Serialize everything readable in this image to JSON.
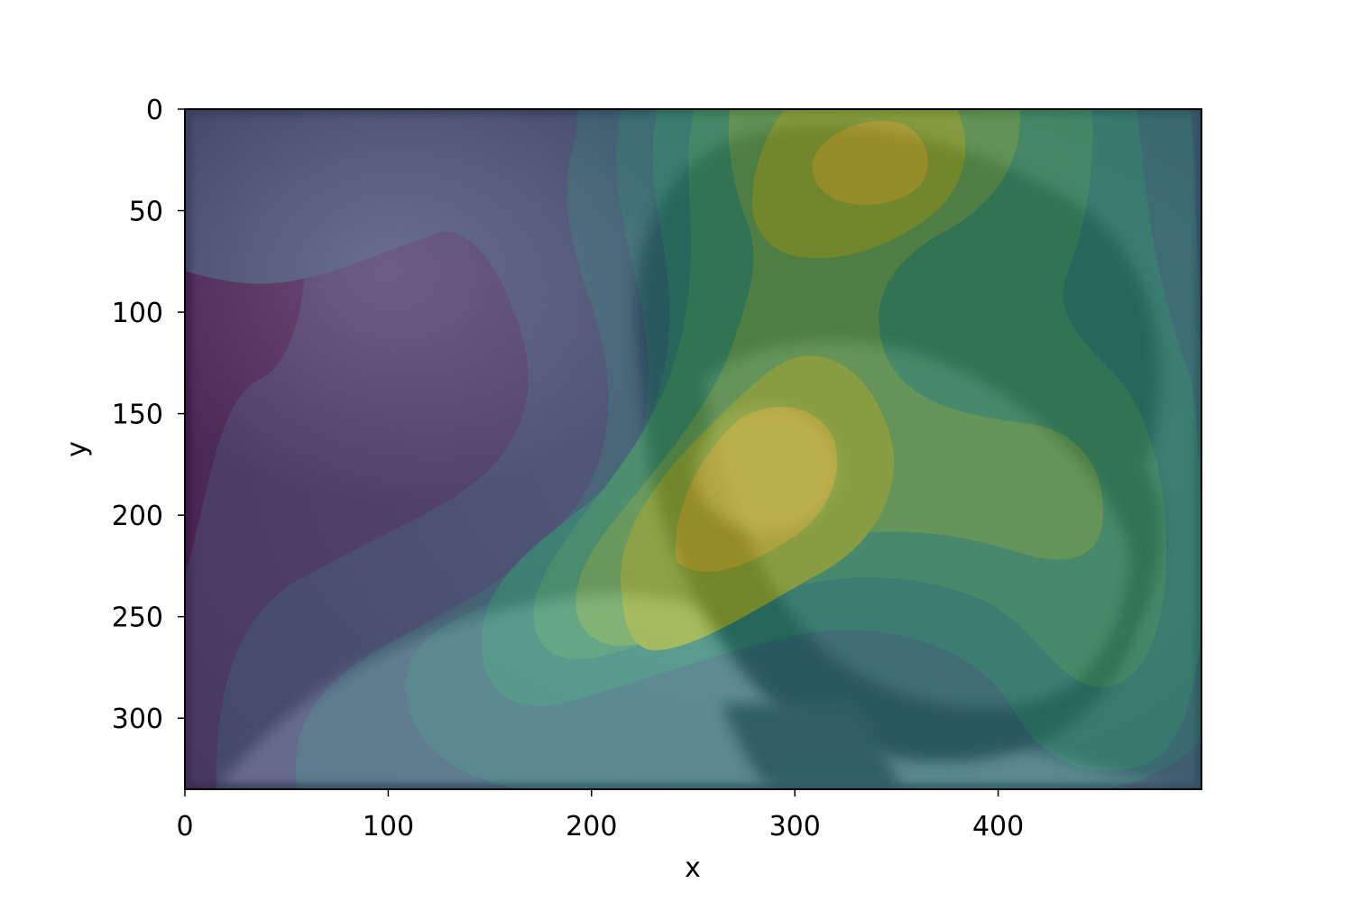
{
  "chart_data": {
    "type": "heatmap",
    "title": "",
    "xlabel": "x",
    "ylabel": "y",
    "xlim": [
      0,
      500
    ],
    "ylim": [
      335,
      0
    ],
    "y_axis_inverted": true,
    "grid": false,
    "legend": "none",
    "colormap": "viridis",
    "background": "grayscale photograph of a man's face in profile, facing right",
    "x_ticks": [
      0,
      100,
      200,
      300,
      400
    ],
    "y_ticks": [
      0,
      50,
      100,
      150,
      200,
      250,
      300
    ],
    "density_peaks": [
      {
        "x": 335,
        "y": 30,
        "level": "max"
      },
      {
        "x": 270,
        "y": 190,
        "level": "max"
      }
    ],
    "contour_levels": 9,
    "colors": {
      "low": "#440154",
      "mid": "#21918c",
      "high": "#fde725"
    }
  }
}
